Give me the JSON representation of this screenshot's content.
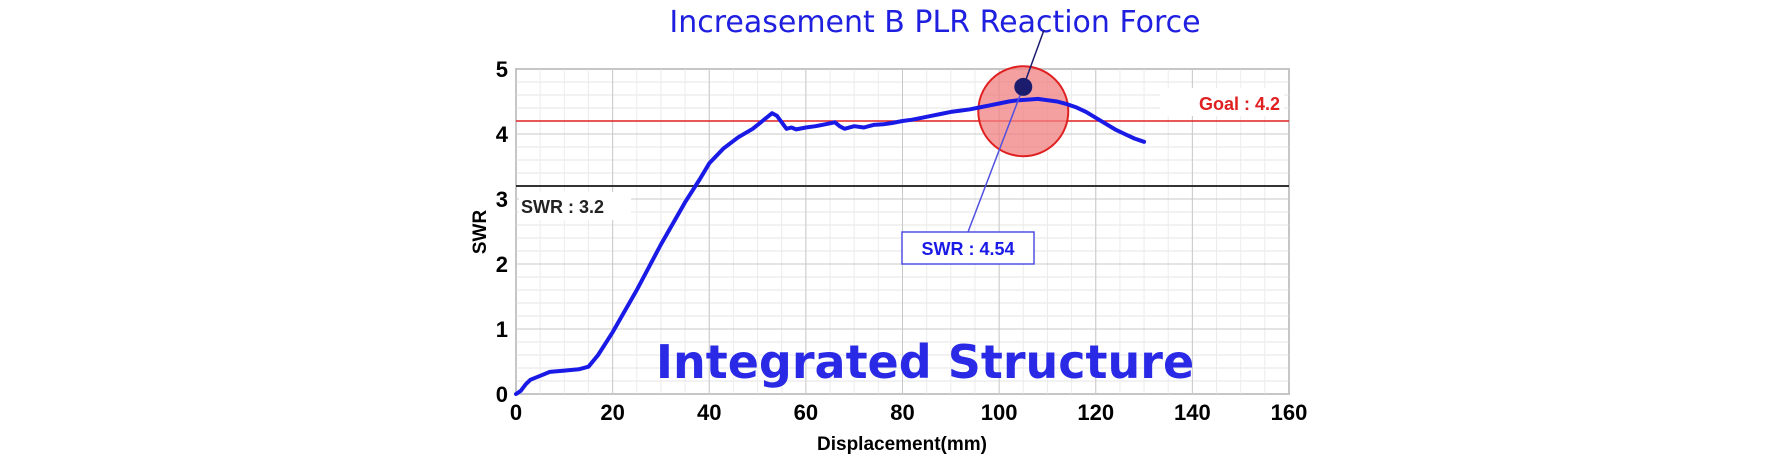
{
  "chart_data": {
    "type": "line",
    "title": "Increasement  B PLR Reaction Force",
    "overlay_label": "Integrated Structure",
    "xlabel": "Displacement(mm)",
    "ylabel": "SWR",
    "xlim": [
      0,
      160
    ],
    "ylim": [
      0,
      5
    ],
    "x_ticks": [
      0,
      20,
      40,
      60,
      80,
      100,
      120,
      140,
      160
    ],
    "y_ticks": [
      0,
      1,
      2,
      3,
      4,
      5
    ],
    "grid": true,
    "series": [
      {
        "color": "#1a1ae6",
        "x": [
          0,
          1,
          2,
          3,
          5,
          7,
          10,
          13,
          15,
          17,
          20,
          25,
          30,
          35,
          38,
          40,
          43,
          46,
          49,
          51,
          53,
          54,
          55,
          56,
          57,
          58,
          60,
          62,
          64,
          66,
          67,
          68,
          70,
          72,
          74,
          76,
          78,
          80,
          82,
          84,
          86,
          88,
          90,
          92,
          94,
          96,
          98,
          100,
          102,
          104,
          106,
          108,
          110,
          112,
          114,
          116,
          118,
          120,
          122,
          124,
          126,
          128,
          130
        ],
        "y": [
          0.0,
          0.05,
          0.15,
          0.22,
          0.28,
          0.34,
          0.36,
          0.38,
          0.42,
          0.6,
          0.95,
          1.6,
          2.3,
          2.95,
          3.3,
          3.55,
          3.78,
          3.95,
          4.08,
          4.2,
          4.32,
          4.28,
          4.18,
          4.08,
          4.1,
          4.07,
          4.1,
          4.12,
          4.15,
          4.18,
          4.12,
          4.08,
          4.12,
          4.1,
          4.14,
          4.15,
          4.17,
          4.2,
          4.22,
          4.25,
          4.28,
          4.31,
          4.34,
          4.36,
          4.38,
          4.41,
          4.44,
          4.47,
          4.5,
          4.52,
          4.53,
          4.54,
          4.52,
          4.5,
          4.46,
          4.41,
          4.34,
          4.25,
          4.16,
          4.07,
          4.0,
          3.93,
          3.88
        ]
      }
    ],
    "reference_lines": [
      {
        "label": "Goal : 4.2",
        "y": 4.2,
        "color": "#e02020"
      },
      {
        "label": "SWR : 3.2",
        "y": 3.2,
        "color": "#333333"
      }
    ],
    "highlight": {
      "label": "SWR : 4.54",
      "x": 105,
      "y": 4.54,
      "circle_color": "#f08080",
      "circle_stroke": "#e02020",
      "marker_color": "#1c1c6e"
    }
  }
}
